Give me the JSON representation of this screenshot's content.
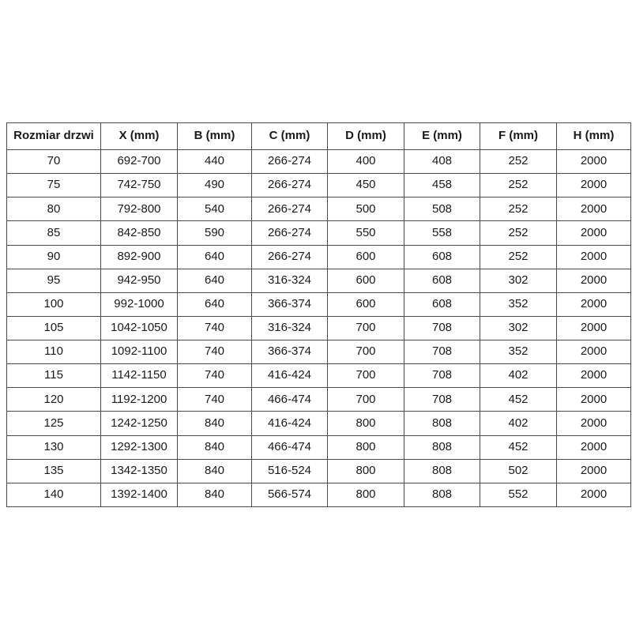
{
  "colors": {
    "background": "#ffffff",
    "border": "#4a4a4a",
    "text": "#1a1a1a"
  },
  "table": {
    "columns": [
      "Rozmiar drzwi",
      "X (mm)",
      "B (mm)",
      "C (mm)",
      "D (mm)",
      "E (mm)",
      "F (mm)",
      "H (mm)"
    ],
    "rows": [
      [
        "70",
        "692-700",
        "440",
        "266-274",
        "400",
        "408",
        "252",
        "2000"
      ],
      [
        "75",
        "742-750",
        "490",
        "266-274",
        "450",
        "458",
        "252",
        "2000"
      ],
      [
        "80",
        "792-800",
        "540",
        "266-274",
        "500",
        "508",
        "252",
        "2000"
      ],
      [
        "85",
        "842-850",
        "590",
        "266-274",
        "550",
        "558",
        "252",
        "2000"
      ],
      [
        "90",
        "892-900",
        "640",
        "266-274",
        "600",
        "608",
        "252",
        "2000"
      ],
      [
        "95",
        "942-950",
        "640",
        "316-324",
        "600",
        "608",
        "302",
        "2000"
      ],
      [
        "100",
        "992-1000",
        "640",
        "366-374",
        "600",
        "608",
        "352",
        "2000"
      ],
      [
        "105",
        "1042-1050",
        "740",
        "316-324",
        "700",
        "708",
        "302",
        "2000"
      ],
      [
        "110",
        "1092-1100",
        "740",
        "366-374",
        "700",
        "708",
        "352",
        "2000"
      ],
      [
        "115",
        "1142-1150",
        "740",
        "416-424",
        "700",
        "708",
        "402",
        "2000"
      ],
      [
        "120",
        "1192-1200",
        "740",
        "466-474",
        "700",
        "708",
        "452",
        "2000"
      ],
      [
        "125",
        "1242-1250",
        "840",
        "416-424",
        "800",
        "808",
        "402",
        "2000"
      ],
      [
        "130",
        "1292-1300",
        "840",
        "466-474",
        "800",
        "808",
        "452",
        "2000"
      ],
      [
        "135",
        "1342-1350",
        "840",
        "516-524",
        "800",
        "808",
        "502",
        "2000"
      ],
      [
        "140",
        "1392-1400",
        "840",
        "566-574",
        "800",
        "808",
        "552",
        "2000"
      ]
    ]
  }
}
